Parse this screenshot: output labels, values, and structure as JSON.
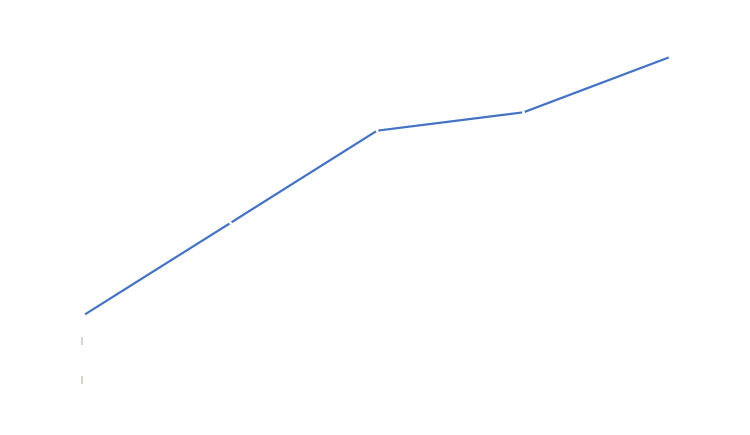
{
  "chart_data": {
    "type": "line",
    "x": [
      1,
      2,
      3,
      4,
      5
    ],
    "series": [
      {
        "values": [
          0,
          0.5,
          1.0,
          1.1,
          1.4
        ]
      }
    ],
    "xlim": [
      1,
      5
    ],
    "ylim": [
      0,
      1.4
    ],
    "grid": false,
    "legend": "none"
  },
  "colors": {
    "background": "#ffffff",
    "line": "#4472c4",
    "marker": "#ffffff",
    "tick_mark": "#bfb7a8"
  }
}
